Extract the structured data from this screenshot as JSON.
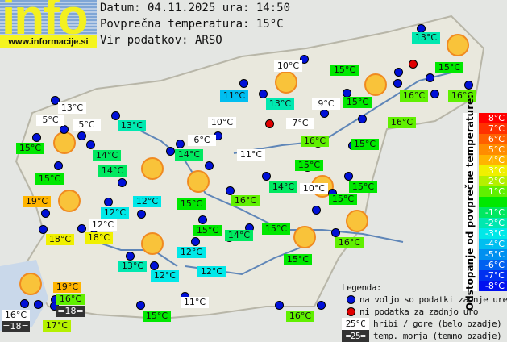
{
  "logo": {
    "text": "info",
    "url": "www.informacije.si"
  },
  "header": {
    "date_line": "Datum: 04.11.2025 ura: 14:50",
    "avg_line": "Povprečna temperatura: 15°C",
    "source_line": "Vir podatkov: ARSO"
  },
  "average_temperature": 15,
  "stations": [
    {
      "t": "13°C",
      "k": "m"
    },
    {
      "t": "5°C",
      "k": "m"
    },
    {
      "t": "5°C",
      "k": "m"
    },
    {
      "t": "15°C",
      "k": "d"
    },
    {
      "t": "13°C",
      "k": "d"
    },
    {
      "t": "14°C",
      "k": "d"
    },
    {
      "t": "14°C",
      "k": "d"
    },
    {
      "t": "15°C",
      "k": "d"
    },
    {
      "t": "19°C",
      "k": "d"
    },
    {
      "t": "12°C",
      "k": "d"
    },
    {
      "t": "12°C",
      "k": "d"
    },
    {
      "t": "12°C",
      "k": "m"
    },
    {
      "t": "18°C",
      "k": "d"
    },
    {
      "t": "18°C",
      "k": "d"
    },
    {
      "t": "10°C",
      "k": "m"
    },
    {
      "t": "11°C",
      "k": "d"
    },
    {
      "t": "13°C",
      "k": "d"
    },
    {
      "t": "9°C",
      "k": "m"
    },
    {
      "t": "10°C",
      "k": "m"
    },
    {
      "t": "7°C",
      "k": "m"
    },
    {
      "t": "6°C",
      "k": "m"
    },
    {
      "t": "14°C",
      "k": "d"
    },
    {
      "t": "16°C",
      "k": "d"
    },
    {
      "t": "11°C",
      "k": "m"
    },
    {
      "t": "15°C",
      "k": "d"
    },
    {
      "t": "14°C",
      "k": "d"
    },
    {
      "t": "10°C",
      "k": "m"
    },
    {
      "t": "13°C",
      "k": "d"
    },
    {
      "t": "15°C",
      "k": "d"
    },
    {
      "t": "15°C",
      "k": "d"
    },
    {
      "t": "15°C",
      "k": "d"
    },
    {
      "t": "16°C",
      "k": "d"
    },
    {
      "t": "16°C",
      "k": "d"
    },
    {
      "t": "16°C",
      "k": "d"
    },
    {
      "t": "15°C",
      "k": "d"
    },
    {
      "t": "15°C",
      "k": "d"
    },
    {
      "t": "15°C",
      "k": "d"
    },
    {
      "t": "16°C",
      "k": "d"
    },
    {
      "t": "15°C",
      "k": "d"
    },
    {
      "t": "16°C",
      "k": "d"
    },
    {
      "t": "15°C",
      "k": "d"
    },
    {
      "t": "14°C",
      "k": "d"
    },
    {
      "t": "15°C",
      "k": "d"
    },
    {
      "t": "15°C",
      "k": "d"
    },
    {
      "t": "12°C",
      "k": "d"
    },
    {
      "t": "13°C",
      "k": "d"
    },
    {
      "t": "12°C",
      "k": "d"
    },
    {
      "t": "12°C",
      "k": "d"
    },
    {
      "t": "11°C",
      "k": "m"
    },
    {
      "t": "15°C",
      "k": "d"
    },
    {
      "t": "16°C",
      "k": "d"
    },
    {
      "t": "19°C",
      "k": "d"
    },
    {
      "t": "16°C",
      "k": "d"
    },
    {
      "t": "=18=",
      "k": "s"
    },
    {
      "t": "16°C",
      "k": "m"
    },
    {
      "t": "=18=",
      "k": "s"
    },
    {
      "t": "17°C",
      "k": "d"
    }
  ],
  "scale": {
    "title": "Odstopanje od povprečne temperature:",
    "steps": [
      {
        "label": "8°C",
        "color": "#ff0000"
      },
      {
        "label": "7°C",
        "color": "#ff3000"
      },
      {
        "label": "6°C",
        "color": "#ff6000"
      },
      {
        "label": "5°C",
        "color": "#ff8c00"
      },
      {
        "label": "4°C",
        "color": "#ffb400"
      },
      {
        "label": "3°C",
        "color": "#f0f000"
      },
      {
        "label": "2°C",
        "color": "#b4f000"
      },
      {
        "label": "1°C",
        "color": "#60f000"
      },
      {
        "label": "",
        "color": "#00e800"
      },
      {
        "label": "-1°C",
        "color": "#00e860"
      },
      {
        "label": "-2°C",
        "color": "#00e8b0"
      },
      {
        "label": "-3°C",
        "color": "#00e8e8"
      },
      {
        "label": "-4°C",
        "color": "#00bef0"
      },
      {
        "label": "-5°C",
        "color": "#0090f0"
      },
      {
        "label": "-6°C",
        "color": "#0060f0"
      },
      {
        "label": "-7°C",
        "color": "#0030f0"
      },
      {
        "label": "-8°C",
        "color": "#0010f0"
      }
    ]
  },
  "legend": {
    "title": "Legenda:",
    "blue": "na voljo so podatki zadnje ure",
    "red": "ni podatka za zadnjo uro",
    "mountain_sample": "25°C",
    "mountain": "hribi / gore (belo ozadje)",
    "sea_sample": "=25=",
    "sea": "temp. morja (temno ozadje)"
  },
  "colors": {
    "dot_available": "#0010d8",
    "dot_missing": "#e00000",
    "sun": "#f9c33a"
  }
}
